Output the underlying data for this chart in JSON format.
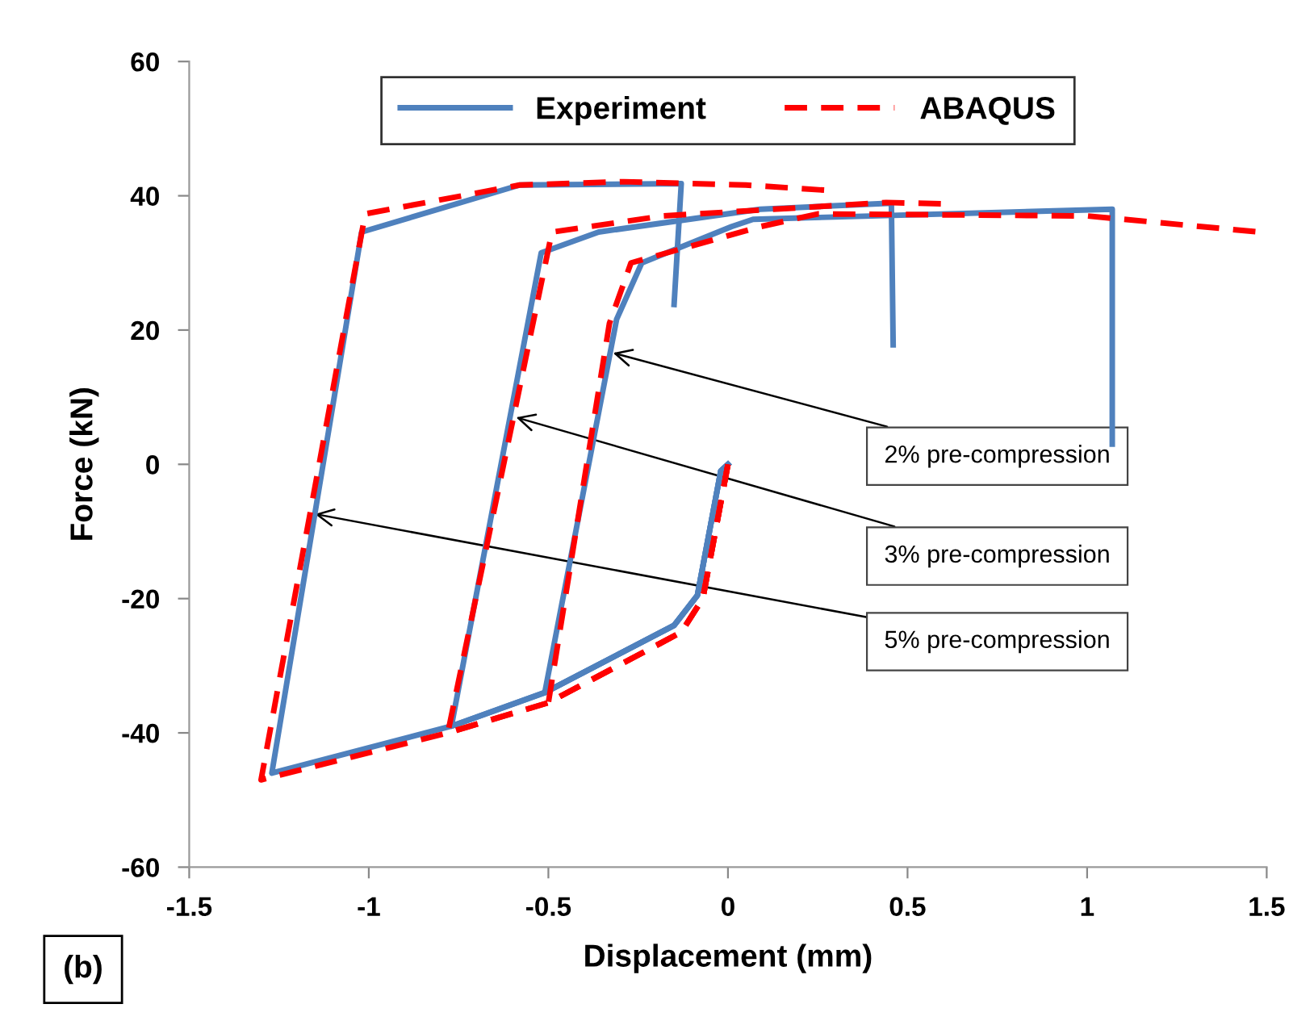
{
  "chart_data": {
    "type": "line",
    "xlabel": "Displacement (mm)",
    "ylabel": "Force (kN)",
    "xlim": [
      -1.5,
      1.5
    ],
    "xticks": [
      -1.5,
      -1,
      -0.5,
      0,
      0.5,
      1,
      1.5
    ],
    "ylim": [
      -60,
      60
    ],
    "yticks": [
      -60,
      -40,
      -20,
      0,
      20,
      40,
      60
    ],
    "grid": false,
    "legend": "top",
    "marker": "none",
    "series": [
      {
        "name": "Experiment",
        "color": "#4f81bd",
        "line_style": "solid",
        "x": [
          0,
          -0.02,
          -0.085,
          -0.15,
          -0.51,
          -0.77,
          -1.27,
          -1.02,
          -0.58,
          -0.13,
          -0.15
        ],
        "values": [
          0,
          -1,
          -19.5,
          -24,
          -34,
          -39,
          -46,
          34.6,
          41.6,
          41.8,
          23.8
        ]
      },
      {
        "color": "#4f81bd",
        "line_style": "solid",
        "x": [
          0,
          -0.02,
          -0.085,
          -0.15,
          -0.51,
          -0.77,
          -0.52,
          -0.36,
          0.09,
          0.455,
          0.46
        ],
        "values": [
          0,
          -1,
          -19.5,
          -24,
          -34,
          -39,
          31.5,
          34.6,
          38,
          38.9,
          17.8
        ]
      },
      {
        "color": "#4f81bd",
        "line_style": "solid",
        "x": [
          0,
          -0.02,
          -0.085,
          -0.15,
          -0.51,
          -0.31,
          -0.24,
          0.01,
          0.07,
          1.07,
          1.07
        ],
        "values": [
          0,
          -1,
          -19.5,
          -24,
          -34,
          21.6,
          30,
          35.4,
          36.5,
          38,
          3
        ]
      },
      {
        "name": "ABAQUS",
        "color": "#ff0000",
        "line_style": "dashed",
        "x": [
          0,
          -0.07,
          -0.13,
          -0.5,
          -0.78,
          -1.3,
          -1.01,
          -0.58,
          -0.29,
          0.05,
          0.28
        ],
        "values": [
          0,
          -20,
          -25,
          -35.5,
          -40,
          -47,
          37.3,
          41.6,
          42.1,
          41.6,
          40.8
        ]
      },
      {
        "color": "#ff0000",
        "line_style": "dashed",
        "x": [
          0,
          -0.07,
          -0.13,
          -0.5,
          -0.78,
          -0.49,
          -0.18,
          0.44,
          0.6
        ],
        "values": [
          0,
          -20,
          -25,
          -35.5,
          -40,
          34.6,
          37,
          39,
          38.8
        ]
      },
      {
        "color": "#ff0000",
        "line_style": "dashed",
        "x": [
          0,
          -0.07,
          -0.13,
          -0.5,
          -0.33,
          -0.27,
          0.09,
          0.25,
          1.0,
          1.48
        ],
        "values": [
          0,
          -20,
          -25,
          -35.5,
          21,
          30,
          35.4,
          37.3,
          37,
          34.6
        ]
      }
    ],
    "annotations": [
      {
        "text": "2% pre-compression",
        "x": -0.32,
        "y": 16.6
      },
      {
        "text": "3% pre-compression",
        "x": -0.59,
        "y": 7
      },
      {
        "text": "5% pre-compression",
        "x": -1.15,
        "y": -7.4
      },
      "(b)"
    ]
  }
}
